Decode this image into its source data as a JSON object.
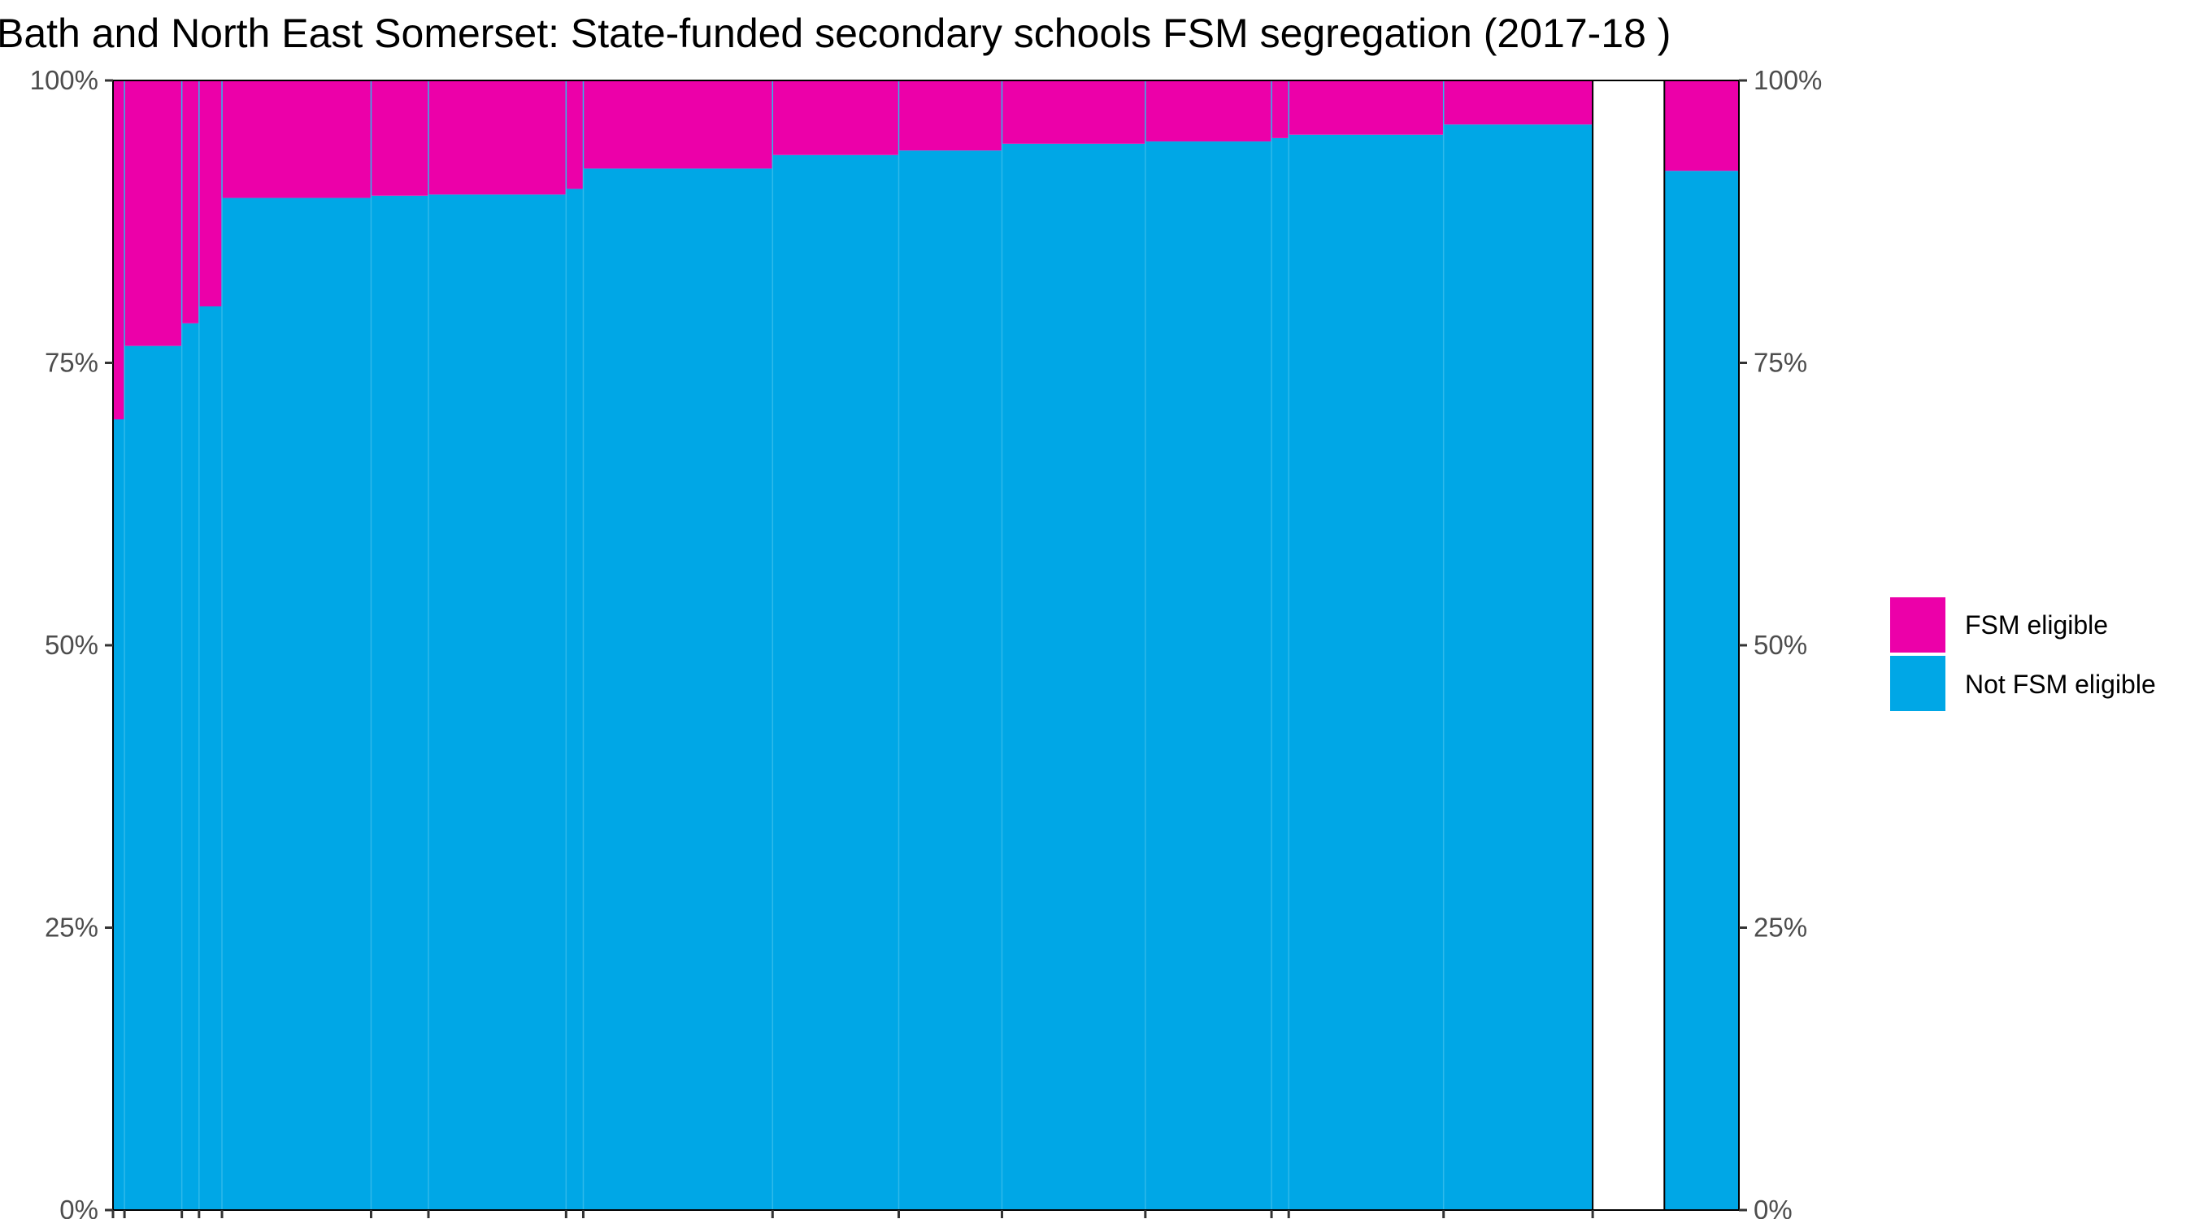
{
  "chart_data": {
    "type": "bar",
    "subtype": "stacked-100-percent-variable-width",
    "title": "Bath and North East Somerset: State-funded secondary schools FSM segregation (2017-18 )",
    "xlabel": "",
    "ylabel": "",
    "ylim": [
      0,
      100
    ],
    "y_ticks": [
      "0%",
      "25%",
      "50%",
      "75%",
      "100%"
    ],
    "y_ticks_right": [
      "0%",
      "25%",
      "50%",
      "75%",
      "100%"
    ],
    "x_tick_labels_visible": false,
    "grid": false,
    "legend_position": "right",
    "colors": {
      "fsm": "#ec00a9",
      "not_fsm": "#00a7e6",
      "panel_border": "#000000",
      "tick_label": "#4d4d4d",
      "divider": "#2fb9ea"
    },
    "series": [
      {
        "name": "FSM eligible",
        "color": "#ec00a9"
      },
      {
        "name": "Not FSM eligible",
        "color": "#00a7e6"
      }
    ],
    "schools": [
      {
        "pupils": 2,
        "fsm_pct": 30.0,
        "not_fsm_pct": 70.0
      },
      {
        "pupils": 10,
        "fsm_pct": 23.5,
        "not_fsm_pct": 76.5
      },
      {
        "pupils": 3,
        "fsm_pct": 21.5,
        "not_fsm_pct": 78.5
      },
      {
        "pupils": 4,
        "fsm_pct": 20.0,
        "not_fsm_pct": 80.0
      },
      {
        "pupils": 26,
        "fsm_pct": 10.4,
        "not_fsm_pct": 89.6
      },
      {
        "pupils": 10,
        "fsm_pct": 10.2,
        "not_fsm_pct": 89.8
      },
      {
        "pupils": 24,
        "fsm_pct": 10.1,
        "not_fsm_pct": 89.9
      },
      {
        "pupils": 3,
        "fsm_pct": 9.6,
        "not_fsm_pct": 90.4
      },
      {
        "pupils": 33,
        "fsm_pct": 7.8,
        "not_fsm_pct": 92.2
      },
      {
        "pupils": 22,
        "fsm_pct": 6.6,
        "not_fsm_pct": 93.4
      },
      {
        "pupils": 18,
        "fsm_pct": 6.2,
        "not_fsm_pct": 93.8
      },
      {
        "pupils": 25,
        "fsm_pct": 5.6,
        "not_fsm_pct": 94.4
      },
      {
        "pupils": 22,
        "fsm_pct": 5.4,
        "not_fsm_pct": 94.6
      },
      {
        "pupils": 3,
        "fsm_pct": 5.1,
        "not_fsm_pct": 94.9
      },
      {
        "pupils": 27,
        "fsm_pct": 4.8,
        "not_fsm_pct": 95.2
      },
      {
        "pupils": 26,
        "fsm_pct": 3.9,
        "not_fsm_pct": 96.1
      }
    ],
    "gap_pupils": 12.5,
    "overall": {
      "pupils": 13,
      "fsm_pct": 8.0,
      "not_fsm_pct": 92.0
    }
  }
}
